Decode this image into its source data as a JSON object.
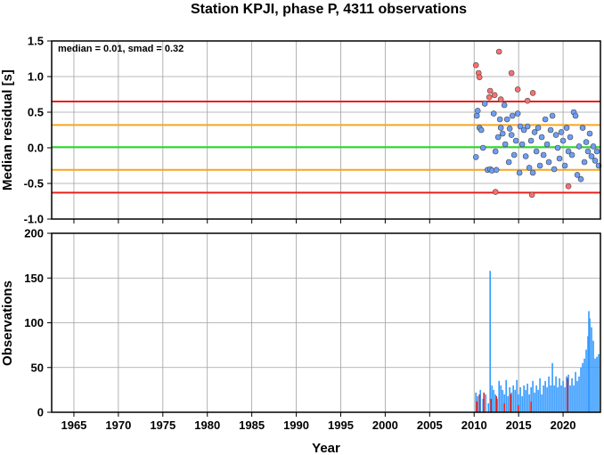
{
  "chart_data": [
    {
      "type": "scatter",
      "title": "Station KPJI, phase P, 4311 observations",
      "ylabel": "Median residual [s]",
      "xlim": [
        1962.5,
        2024.2
      ],
      "ylim": [
        -1.0,
        1.5
      ],
      "yticks": [
        "1.5",
        "1.0",
        "0.5",
        "0.0",
        "-0.5",
        "-1.0"
      ],
      "grid": true,
      "annotation": "median = 0.01, smad = 0.32",
      "reference_lines": [
        {
          "y": 0.65,
          "color": "#e8201c"
        },
        {
          "y": 0.32,
          "color": "#f5a623"
        },
        {
          "y": 0.01,
          "color": "#22dd22"
        },
        {
          "y": -0.31,
          "color": "#f5a623"
        },
        {
          "y": -0.63,
          "color": "#e8201c"
        }
      ],
      "series": [
        {
          "color": "#ff6f6f",
          "points": [
            [
              2010.2,
              1.16
            ],
            [
              2010.5,
              1.05
            ],
            [
              2010.6,
              0.99
            ],
            [
              2011.7,
              0.71
            ],
            [
              2011.8,
              0.8
            ],
            [
              2012.3,
              0.74
            ],
            [
              2012.4,
              -0.62
            ],
            [
              2012.8,
              1.35
            ],
            [
              2013.0,
              0.68
            ],
            [
              2014.2,
              1.05
            ],
            [
              2014.9,
              0.82
            ],
            [
              2016.0,
              0.66
            ],
            [
              2016.5,
              -0.66
            ],
            [
              2016.6,
              0.77
            ],
            [
              2020.6,
              -0.54
            ]
          ]
        },
        {
          "color": "#6e9ef5",
          "points": [
            [
              2010.2,
              -0.13
            ],
            [
              2010.3,
              0.45
            ],
            [
              2010.4,
              0.52
            ],
            [
              2010.6,
              0.28
            ],
            [
              2010.8,
              0.25
            ],
            [
              2011.0,
              0.0
            ],
            [
              2011.2,
              0.62
            ],
            [
              2011.5,
              -0.31
            ],
            [
              2011.8,
              -0.3
            ],
            [
              2012.0,
              -0.32
            ],
            [
              2012.2,
              0.48
            ],
            [
              2012.4,
              -0.05
            ],
            [
              2012.5,
              -0.31
            ],
            [
              2012.7,
              0.15
            ],
            [
              2012.9,
              0.4
            ],
            [
              2013.0,
              0.28
            ],
            [
              2013.2,
              0.2
            ],
            [
              2013.4,
              0.6
            ],
            [
              2013.5,
              0.05
            ],
            [
              2013.7,
              0.4
            ],
            [
              2013.9,
              -0.2
            ],
            [
              2014.0,
              0.27
            ],
            [
              2014.2,
              0.18
            ],
            [
              2014.3,
              0.45
            ],
            [
              2014.5,
              -0.1
            ],
            [
              2014.7,
              0.1
            ],
            [
              2014.9,
              0.48
            ],
            [
              2015.1,
              -0.35
            ],
            [
              2015.2,
              0.3
            ],
            [
              2015.4,
              0.05
            ],
            [
              2015.6,
              0.25
            ],
            [
              2015.8,
              -0.12
            ],
            [
              2016.0,
              0.3
            ],
            [
              2016.2,
              -0.28
            ],
            [
              2016.4,
              0.1
            ],
            [
              2016.6,
              -0.35
            ],
            [
              2016.8,
              0.22
            ],
            [
              2017.0,
              -0.05
            ],
            [
              2017.2,
              0.28
            ],
            [
              2017.4,
              -0.25
            ],
            [
              2017.6,
              0.15
            ],
            [
              2017.8,
              -0.1
            ],
            [
              2018.0,
              0.4
            ],
            [
              2018.2,
              0.05
            ],
            [
              2018.4,
              -0.2
            ],
            [
              2018.6,
              0.25
            ],
            [
              2018.8,
              0.45
            ],
            [
              2019.0,
              -0.3
            ],
            [
              2019.2,
              0.18
            ],
            [
              2019.4,
              0.0
            ],
            [
              2019.6,
              -0.15
            ],
            [
              2019.8,
              0.22
            ],
            [
              2020.0,
              0.1
            ],
            [
              2020.2,
              -0.25
            ],
            [
              2020.4,
              0.28
            ],
            [
              2020.6,
              -0.05
            ],
            [
              2020.8,
              0.15
            ],
            [
              2021.0,
              -0.1
            ],
            [
              2021.2,
              0.5
            ],
            [
              2021.4,
              0.45
            ],
            [
              2021.6,
              -0.38
            ],
            [
              2021.8,
              0.02
            ],
            [
              2022.0,
              -0.44
            ],
            [
              2022.2,
              0.28
            ],
            [
              2022.4,
              -0.2
            ],
            [
              2022.6,
              0.08
            ],
            [
              2022.8,
              -0.05
            ],
            [
              2023.0,
              0.2
            ],
            [
              2023.2,
              -0.12
            ],
            [
              2023.4,
              0.02
            ],
            [
              2023.6,
              -0.18
            ],
            [
              2023.8,
              -0.05
            ],
            [
              2024.0,
              -0.25
            ]
          ]
        }
      ]
    },
    {
      "type": "bar",
      "xlabel": "Year",
      "ylabel": "Observations",
      "xlim": [
        1962.5,
        2024.2
      ],
      "ylim": [
        0,
        200
      ],
      "xticks": [
        "1965",
        "1970",
        "1975",
        "1980",
        "1985",
        "1990",
        "1995",
        "2000",
        "2005",
        "2010",
        "2015",
        "2020"
      ],
      "yticks": [
        "200",
        "150",
        "100",
        "50",
        "0"
      ],
      "grid": true,
      "series": [
        {
          "color": "#3399ff",
          "points": [
            [
              2010.2,
              22
            ],
            [
              2010.4,
              18
            ],
            [
              2010.7,
              25
            ],
            [
              2011.0,
              15
            ],
            [
              2011.3,
              20
            ],
            [
              2011.6,
              10
            ],
            [
              2011.8,
              158
            ],
            [
              2012.0,
              30
            ],
            [
              2012.2,
              25
            ],
            [
              2012.4,
              20
            ],
            [
              2012.6,
              15
            ],
            [
              2012.8,
              35
            ],
            [
              2013.0,
              30
            ],
            [
              2013.2,
              25
            ],
            [
              2013.4,
              20
            ],
            [
              2013.6,
              36
            ],
            [
              2013.8,
              18
            ],
            [
              2014.0,
              28
            ],
            [
              2014.2,
              22
            ],
            [
              2014.4,
              30
            ],
            [
              2014.6,
              25
            ],
            [
              2014.8,
              36
            ],
            [
              2015.0,
              20
            ],
            [
              2015.2,
              28
            ],
            [
              2015.4,
              18
            ],
            [
              2015.6,
              30
            ],
            [
              2015.8,
              25
            ],
            [
              2016.0,
              32
            ],
            [
              2016.2,
              20
            ],
            [
              2016.4,
              28
            ],
            [
              2016.6,
              35
            ],
            [
              2016.8,
              22
            ],
            [
              2017.0,
              30
            ],
            [
              2017.2,
              25
            ],
            [
              2017.4,
              38
            ],
            [
              2017.6,
              20
            ],
            [
              2017.8,
              30
            ],
            [
              2018.0,
              35
            ],
            [
              2018.2,
              28
            ],
            [
              2018.4,
              40
            ],
            [
              2018.6,
              30
            ],
            [
              2018.8,
              55
            ],
            [
              2019.0,
              30
            ],
            [
              2019.2,
              40
            ],
            [
              2019.4,
              28
            ],
            [
              2019.6,
              38
            ],
            [
              2019.8,
              30
            ],
            [
              2020.0,
              35
            ],
            [
              2020.2,
              28
            ],
            [
              2020.4,
              40
            ],
            [
              2020.6,
              42
            ],
            [
              2020.8,
              30
            ],
            [
              2021.0,
              38
            ],
            [
              2021.2,
              30
            ],
            [
              2021.4,
              45
            ],
            [
              2021.6,
              35
            ],
            [
              2021.8,
              40
            ],
            [
              2022.0,
              50
            ],
            [
              2022.2,
              55
            ],
            [
              2022.4,
              60
            ],
            [
              2022.6,
              70
            ],
            [
              2022.8,
              85
            ],
            [
              2022.9,
              113
            ],
            [
              2023.0,
              105
            ],
            [
              2023.2,
              95
            ],
            [
              2023.4,
              80
            ],
            [
              2023.6,
              60
            ],
            [
              2023.8,
              62
            ],
            [
              2024.0,
              65
            ]
          ]
        },
        {
          "color": "#e8201c",
          "points": [
            [
              2010.3,
              12
            ],
            [
              2010.6,
              20
            ],
            [
              2011.1,
              22
            ],
            [
              2011.9,
              15
            ],
            [
              2012.5,
              18
            ],
            [
              2013.4,
              10
            ],
            [
              2014.1,
              20
            ],
            [
              2015.0,
              8
            ],
            [
              2016.4,
              12
            ],
            [
              2020.5,
              38
            ]
          ]
        }
      ]
    }
  ]
}
